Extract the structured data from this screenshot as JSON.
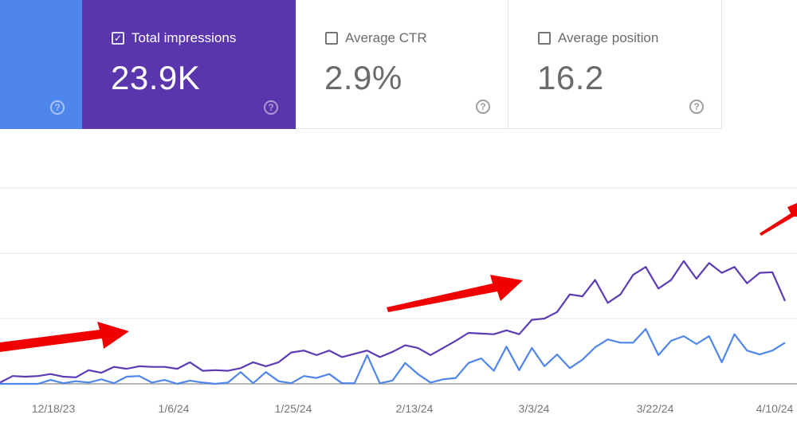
{
  "metrics": {
    "clicks": {
      "color": "#4f86ec",
      "selected": true
    },
    "impressions": {
      "label": "Total impressions",
      "value": "23.9K",
      "selected": true,
      "color": "#5936ab"
    },
    "ctr": {
      "label": "Average CTR",
      "value": "2.9%",
      "selected": false
    },
    "position": {
      "label": "Average position",
      "value": "16.2",
      "selected": false
    }
  },
  "icons": {
    "checkbox_checked": "✓",
    "help": "?"
  },
  "annotation_color": "#f00000",
  "chart_data": {
    "type": "line",
    "grid": true,
    "x_tick_labels": [
      "12/18/23",
      "1/6/24",
      "1/25/24",
      "2/13/24",
      "3/3/24",
      "3/22/24",
      "4/10/24"
    ],
    "x": [
      "12/10/23",
      "12/12/23",
      "12/14/23",
      "12/16/23",
      "12/18/23",
      "12/20/23",
      "12/22/23",
      "12/24/23",
      "12/26/23",
      "12/28/23",
      "12/30/23",
      "1/1/24",
      "1/3/24",
      "1/5/24",
      "1/7/24",
      "1/9/24",
      "1/11/24",
      "1/13/24",
      "1/15/24",
      "1/17/24",
      "1/19/24",
      "1/21/24",
      "1/23/24",
      "1/25/24",
      "1/27/24",
      "1/29/24",
      "1/31/24",
      "2/2/24",
      "2/4/24",
      "2/6/24",
      "2/8/24",
      "2/10/24",
      "2/12/24",
      "2/14/24",
      "2/16/24",
      "2/18/24",
      "2/20/24",
      "2/22/24",
      "2/24/24",
      "2/26/24",
      "2/28/24",
      "3/1/24",
      "3/3/24",
      "3/5/24",
      "3/7/24",
      "3/9/24",
      "3/11/24",
      "3/13/24",
      "3/15/24",
      "3/17/24",
      "3/19/24",
      "3/21/24",
      "3/23/24",
      "3/25/24",
      "3/27/24",
      "3/29/24",
      "3/31/24",
      "4/2/24",
      "4/4/24",
      "4/6/24",
      "4/8/24",
      "4/10/24",
      "4/12/24"
    ],
    "ylim": [
      0,
      3
    ],
    "series": [
      {
        "color": "#5b3cb4",
        "values": [
          0.02,
          0.12,
          0.11,
          0.12,
          0.15,
          0.11,
          0.1,
          0.21,
          0.17,
          0.26,
          0.23,
          0.27,
          0.26,
          0.26,
          0.23,
          0.33,
          0.2,
          0.21,
          0.2,
          0.24,
          0.33,
          0.27,
          0.33,
          0.48,
          0.51,
          0.44,
          0.51,
          0.41,
          0.46,
          0.51,
          0.41,
          0.49,
          0.59,
          0.55,
          0.44,
          0.55,
          0.66,
          0.78,
          0.77,
          0.76,
          0.82,
          0.76,
          0.98,
          1.0,
          1.1,
          1.37,
          1.34,
          1.59,
          1.24,
          1.37,
          1.67,
          1.79,
          1.46,
          1.59,
          1.88,
          1.61,
          1.85,
          1.7,
          1.79,
          1.54,
          1.7,
          1.71,
          1.27
        ]
      },
      {
        "color": "#4f86ec",
        "values": [
          0,
          0,
          0,
          0,
          0.06,
          0.01,
          0.04,
          0.02,
          0.07,
          0.01,
          0.11,
          0.12,
          0.02,
          0.06,
          0,
          0.05,
          0.02,
          0,
          0.02,
          0.18,
          0.01,
          0.18,
          0.04,
          0.01,
          0.12,
          0.09,
          0.15,
          0.01,
          0.01,
          0.44,
          0.01,
          0.05,
          0.32,
          0.15,
          0.02,
          0.07,
          0.09,
          0.32,
          0.39,
          0.2,
          0.57,
          0.21,
          0.55,
          0.27,
          0.45,
          0.24,
          0.37,
          0.56,
          0.68,
          0.63,
          0.63,
          0.84,
          0.44,
          0.66,
          0.73,
          0.61,
          0.73,
          0.33,
          0.76,
          0.51,
          0.45,
          0.51,
          0.63
        ]
      }
    ]
  }
}
